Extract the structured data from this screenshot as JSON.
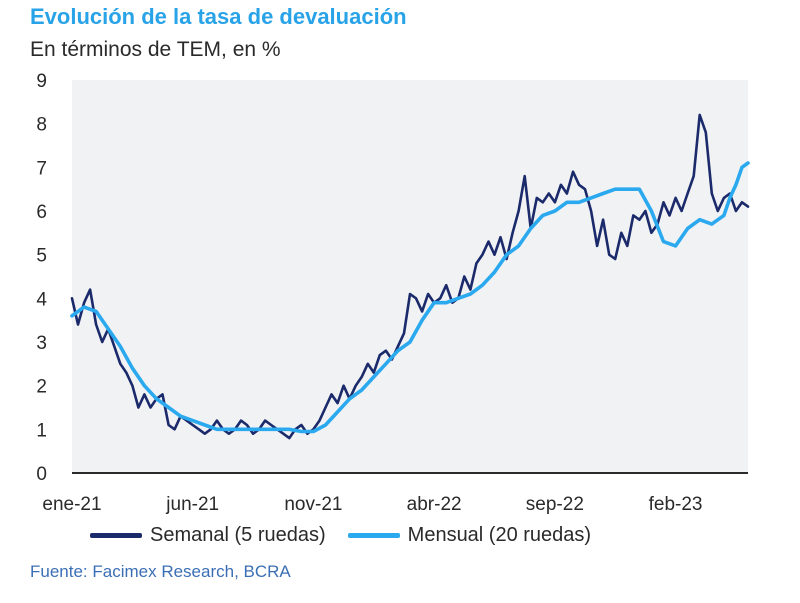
{
  "title": "Evolución de la tasa de devaluación",
  "subtitle": "En términos de TEM, en %",
  "source": "Fuente: Facimex Research, BCRA",
  "colors": {
    "title": "#29a3e8",
    "semanal": "#1b2a6b",
    "mensual": "#2ba9ef",
    "plot_bg": "#f1f2f4"
  },
  "chart_data": {
    "type": "line",
    "title": "Evolución de la tasa de devaluación",
    "ylabel": "En términos de TEM, en %",
    "ylim": [
      0,
      9
    ],
    "yticks": [
      "0",
      "1",
      "2",
      "3",
      "4",
      "5",
      "6",
      "7",
      "8",
      "9"
    ],
    "xlim": [
      0,
      28
    ],
    "x_ticks": [
      {
        "pos": 0,
        "label": "ene-21"
      },
      {
        "pos": 5,
        "label": "jun-21"
      },
      {
        "pos": 10,
        "label": "nov-21"
      },
      {
        "pos": 15,
        "label": "abr-22"
      },
      {
        "pos": 20,
        "label": "sep-22"
      },
      {
        "pos": 25,
        "label": "feb-23"
      }
    ],
    "grid": false,
    "series": [
      {
        "name": "Semanal (5 ruedas)",
        "x": [
          0,
          0.25,
          0.5,
          0.75,
          1,
          1.25,
          1.5,
          1.75,
          2,
          2.25,
          2.5,
          2.75,
          3,
          3.25,
          3.5,
          3.75,
          4,
          4.25,
          4.5,
          4.75,
          5,
          5.25,
          5.5,
          5.75,
          6,
          6.25,
          6.5,
          6.75,
          7,
          7.25,
          7.5,
          7.75,
          8,
          8.25,
          8.5,
          8.75,
          9,
          9.25,
          9.5,
          9.75,
          10,
          10.25,
          10.5,
          10.75,
          11,
          11.25,
          11.5,
          11.75,
          12,
          12.25,
          12.5,
          12.75,
          13,
          13.25,
          13.5,
          13.75,
          14,
          14.25,
          14.5,
          14.75,
          15,
          15.25,
          15.5,
          15.75,
          16,
          16.25,
          16.5,
          16.75,
          17,
          17.25,
          17.5,
          17.75,
          18,
          18.25,
          18.5,
          18.75,
          19,
          19.25,
          19.5,
          19.75,
          20,
          20.25,
          20.5,
          20.75,
          21,
          21.25,
          21.5,
          21.75,
          22,
          22.25,
          22.5,
          22.75,
          23,
          23.25,
          23.5,
          23.75,
          24,
          24.25,
          24.5,
          24.75,
          25,
          25.25,
          25.5,
          25.75,
          26,
          26.25,
          26.5,
          26.75,
          27,
          27.25,
          27.5,
          27.75,
          28
        ],
        "values": [
          4.0,
          3.4,
          3.9,
          4.2,
          3.4,
          3.0,
          3.3,
          2.9,
          2.5,
          2.3,
          2.0,
          1.5,
          1.8,
          1.5,
          1.7,
          1.8,
          1.1,
          1.0,
          1.3,
          1.2,
          1.1,
          1.0,
          0.9,
          1.0,
          1.2,
          1.0,
          0.9,
          1.0,
          1.2,
          1.1,
          0.9,
          1.0,
          1.2,
          1.1,
          1.0,
          0.9,
          0.8,
          1.0,
          1.1,
          0.9,
          1.0,
          1.2,
          1.5,
          1.8,
          1.6,
          2.0,
          1.7,
          2.0,
          2.2,
          2.5,
          2.3,
          2.7,
          2.8,
          2.6,
          2.9,
          3.2,
          4.1,
          4.0,
          3.7,
          4.1,
          3.9,
          4.0,
          4.3,
          3.9,
          4.0,
          4.5,
          4.2,
          4.8,
          5.0,
          5.3,
          5.0,
          5.4,
          4.9,
          5.5,
          6.0,
          6.8,
          5.6,
          6.3,
          6.2,
          6.4,
          6.2,
          6.6,
          6.4,
          6.9,
          6.6,
          6.5,
          6.0,
          5.2,
          5.8,
          5.0,
          4.9,
          5.5,
          5.2,
          5.9,
          5.8,
          6.0,
          5.5,
          5.7,
          6.2,
          5.9,
          6.3,
          6.0,
          6.4,
          6.8,
          8.2,
          7.8,
          6.4,
          6.0,
          6.3,
          6.4,
          6.0,
          6.2,
          6.1
        ]
      },
      {
        "name": "Mensual (20 ruedas)",
        "x": [
          0,
          0.5,
          1,
          1.5,
          2,
          2.5,
          3,
          3.5,
          4,
          4.5,
          5,
          5.5,
          6,
          6.5,
          7,
          7.5,
          8,
          8.5,
          9,
          9.5,
          10,
          10.5,
          11,
          11.5,
          12,
          12.5,
          13,
          13.5,
          14,
          14.5,
          15,
          15.5,
          16,
          16.5,
          17,
          17.5,
          18,
          18.5,
          19,
          19.5,
          20,
          20.5,
          21,
          21.5,
          22,
          22.5,
          23,
          23.5,
          24,
          24.5,
          25,
          25.5,
          26,
          26.5,
          27,
          27.25,
          27.5,
          27.75,
          28
        ],
        "values": [
          3.6,
          3.8,
          3.7,
          3.3,
          2.9,
          2.4,
          2.0,
          1.7,
          1.5,
          1.3,
          1.2,
          1.1,
          1.0,
          1.0,
          1.0,
          1.0,
          1.0,
          1.0,
          1.0,
          0.95,
          0.95,
          1.1,
          1.4,
          1.7,
          1.9,
          2.2,
          2.5,
          2.8,
          3.0,
          3.5,
          3.9,
          3.9,
          4.0,
          4.1,
          4.3,
          4.6,
          5.0,
          5.2,
          5.6,
          5.9,
          6.0,
          6.2,
          6.2,
          6.3,
          6.4,
          6.5,
          6.5,
          6.5,
          6.0,
          5.3,
          5.2,
          5.6,
          5.8,
          5.7,
          5.9,
          6.3,
          6.6,
          7.0,
          7.1
        ]
      }
    ]
  },
  "legend": {
    "semanal": "Semanal (5 ruedas)",
    "mensual": "Mensual (20 ruedas)"
  }
}
